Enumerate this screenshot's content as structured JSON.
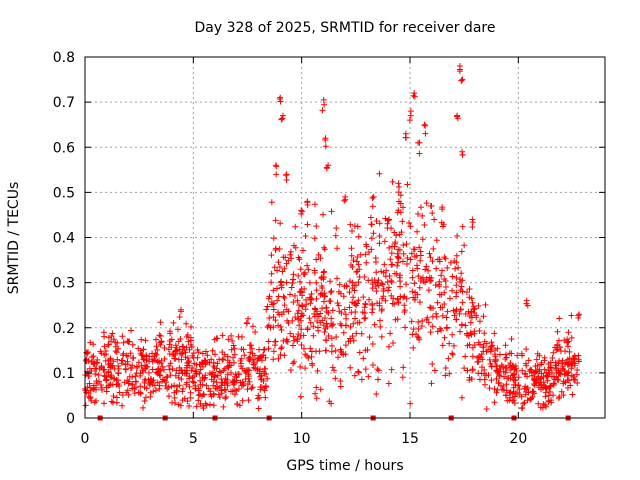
{
  "chart_data": {
    "type": "scatter",
    "title": "Day 328 of 2025, SRMTID for receiver dare",
    "xlabel": "GPS time / hours",
    "ylabel": "SRMTID / TECUs",
    "xlim": [
      0,
      24
    ],
    "ylim": [
      0,
      0.8
    ],
    "x_ticks": [
      "0",
      "5",
      "10",
      "15",
      "20"
    ],
    "y_ticks": [
      "0",
      "0.1",
      "0.2",
      "0.3",
      "0.4",
      "0.5",
      "0.6",
      "0.7",
      "0.8"
    ],
    "grid": true,
    "marker": "plus",
    "color": "#ff0000",
    "marker_color": "#dd0000",
    "baseline_marker_hours": [
      0.7,
      3.7,
      6.0,
      8.5,
      13.3,
      16.9,
      19.8,
      22.3
    ],
    "series": [
      {
        "name": "SRMTID",
        "profile": [
          {
            "x": 0.0,
            "y": 0.1,
            "spread": 0.035
          },
          {
            "x": 1.5,
            "y": 0.11,
            "spread": 0.04
          },
          {
            "x": 3.0,
            "y": 0.1,
            "spread": 0.035
          },
          {
            "x": 4.5,
            "y": 0.11,
            "spread": 0.05
          },
          {
            "x": 5.5,
            "y": 0.09,
            "spread": 0.035
          },
          {
            "x": 6.5,
            "y": 0.1,
            "spread": 0.035
          },
          {
            "x": 7.5,
            "y": 0.12,
            "spread": 0.04
          },
          {
            "x": 8.3,
            "y": 0.11,
            "spread": 0.035
          },
          {
            "x": 8.6,
            "y": 0.28,
            "spread": 0.09
          },
          {
            "x": 9.5,
            "y": 0.27,
            "spread": 0.09
          },
          {
            "x": 10.5,
            "y": 0.25,
            "spread": 0.09
          },
          {
            "x": 11.5,
            "y": 0.24,
            "spread": 0.09
          },
          {
            "x": 12.5,
            "y": 0.25,
            "spread": 0.09
          },
          {
            "x": 13.5,
            "y": 0.29,
            "spread": 0.09
          },
          {
            "x": 14.5,
            "y": 0.32,
            "spread": 0.1
          },
          {
            "x": 15.5,
            "y": 0.3,
            "spread": 0.1
          },
          {
            "x": 16.5,
            "y": 0.27,
            "spread": 0.09
          },
          {
            "x": 17.5,
            "y": 0.26,
            "spread": 0.09
          },
          {
            "x": 18.2,
            "y": 0.15,
            "spread": 0.05
          },
          {
            "x": 19.0,
            "y": 0.1,
            "spread": 0.035
          },
          {
            "x": 20.0,
            "y": 0.08,
            "spread": 0.035
          },
          {
            "x": 21.0,
            "y": 0.08,
            "spread": 0.035
          },
          {
            "x": 22.0,
            "y": 0.11,
            "spread": 0.04
          },
          {
            "x": 22.8,
            "y": 0.13,
            "spread": 0.04
          }
        ],
        "peaks": [
          {
            "x": 8.8,
            "y": 0.56
          },
          {
            "x": 9.0,
            "y": 0.71
          },
          {
            "x": 9.1,
            "y": 0.67
          },
          {
            "x": 9.3,
            "y": 0.54
          },
          {
            "x": 10.0,
            "y": 0.46
          },
          {
            "x": 10.3,
            "y": 0.48
          },
          {
            "x": 11.0,
            "y": 0.705
          },
          {
            "x": 11.1,
            "y": 0.62
          },
          {
            "x": 11.2,
            "y": 0.56
          },
          {
            "x": 12.0,
            "y": 0.49
          },
          {
            "x": 13.3,
            "y": 0.49
          },
          {
            "x": 14.0,
            "y": 0.44
          },
          {
            "x": 14.5,
            "y": 0.52
          },
          {
            "x": 14.8,
            "y": 0.63
          },
          {
            "x": 15.0,
            "y": 0.68
          },
          {
            "x": 15.2,
            "y": 0.72
          },
          {
            "x": 15.4,
            "y": 0.61
          },
          {
            "x": 15.7,
            "y": 0.65
          },
          {
            "x": 16.0,
            "y": 0.47
          },
          {
            "x": 17.3,
            "y": 0.78
          },
          {
            "x": 17.4,
            "y": 0.75
          },
          {
            "x": 17.2,
            "y": 0.67
          },
          {
            "x": 17.4,
            "y": 0.59
          },
          {
            "x": 17.9,
            "y": 0.44
          },
          {
            "x": 20.4,
            "y": 0.26
          },
          {
            "x": 4.4,
            "y": 0.24
          },
          {
            "x": 7.5,
            "y": 0.22
          },
          {
            "x": 3.5,
            "y": 0.17
          },
          {
            "x": 22.8,
            "y": 0.23
          }
        ],
        "count": 1700
      }
    ]
  }
}
